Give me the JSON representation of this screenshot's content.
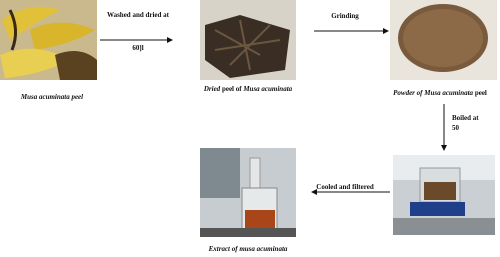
{
  "steps": [
    {
      "caption": [
        "Musa acuminata",
        " peel"
      ]
    },
    {
      "caption": [
        "Dried",
        " peel of ",
        "Musa acuminata"
      ]
    },
    {
      "caption": [
        "Powder of ",
        "Musa acuminata",
        " peel"
      ]
    },
    {
      "caption": []
    },
    {
      "caption": [
        "Extract of ",
        "musa acuminata"
      ]
    }
  ],
  "arrows": [
    {
      "label": [
        "Washed and dried at",
        "60]l"
      ]
    },
    {
      "label": [
        "Grinding"
      ]
    },
    {
      "label": [
        "Boiled at",
        "50"
      ]
    },
    {
      "label": [
        "Cooled and filtered"
      ]
    }
  ]
}
